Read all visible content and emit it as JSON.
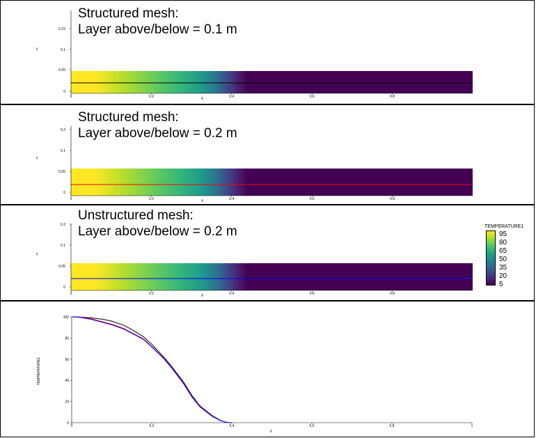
{
  "panels": [
    {
      "title_line1": "Structured mesh:",
      "title_line2": "Layer above/below = 0.1 m",
      "line_color": "#000000"
    },
    {
      "title_line1": "Structured mesh:",
      "title_line2": "Layer above/below = 0.2 m",
      "line_color": "#ff0000"
    },
    {
      "title_line1": "Unstructured mesh:",
      "title_line2": "Layer above/below = 0.2 m",
      "line_color": "#0000ff"
    }
  ],
  "legend": {
    "title": "TEMPERATURE1",
    "labels": [
      "95",
      "80",
      "65",
      "50",
      "35",
      "20",
      "5"
    ],
    "colors": [
      "#fde725",
      "#b5de2b",
      "#6ece58",
      "#35b779",
      "#1f9e89",
      "#26828e",
      "#31688e",
      "#3e4989",
      "#482878",
      "#440154"
    ]
  },
  "chart_data": [
    {
      "type": "heatmap",
      "title": "Structured mesh: Layer above/below = 0.1 m",
      "xlabel": "X",
      "ylabel": "Y",
      "x_ticks": [
        "0",
        "0.2",
        "0.4",
        "0.6",
        "0.8"
      ],
      "y_ticks": [
        "0",
        "0.05",
        "0.1",
        "0.15"
      ],
      "xlim": [
        0,
        1
      ],
      "ylim": [
        0,
        0.2
      ]
    },
    {
      "type": "heatmap",
      "title": "Structured mesh: Layer above/below = 0.2 m",
      "xlabel": "X",
      "ylabel": "Y",
      "x_ticks": [
        "0",
        "0.2",
        "0.4",
        "0.6",
        "0.8"
      ],
      "y_ticks": [
        "0",
        "0.05",
        "0.1",
        "0.2"
      ],
      "xlim": [
        0,
        1
      ],
      "ylim": [
        0,
        0.2
      ]
    },
    {
      "type": "heatmap",
      "title": "Unstructured mesh: Layer above/below = 0.2 m",
      "xlabel": "X",
      "ylabel": "Y",
      "x_ticks": [
        "0",
        "0.2",
        "0.4",
        "0.6",
        "0.8"
      ],
      "y_ticks": [
        "0",
        "0.05",
        "0.1",
        "0.2"
      ],
      "xlim": [
        0,
        1
      ],
      "ylim": [
        0,
        0.2
      ]
    },
    {
      "type": "line",
      "xlabel": "X",
      "ylabel": "TEMPERATURE1",
      "xlim": [
        0,
        1
      ],
      "ylim": [
        0,
        100
      ],
      "x_ticks": [
        "0",
        "0.2",
        "0.4",
        "0.6",
        "0.8",
        "1"
      ],
      "y_ticks": [
        "0",
        "20",
        "40",
        "60",
        "80",
        "100"
      ],
      "series": [
        {
          "color": "#000000",
          "x": [
            0,
            0.02,
            0.05,
            0.08,
            0.1,
            0.13,
            0.15,
            0.18,
            0.2,
            0.23,
            0.25,
            0.28,
            0.3,
            0.32,
            0.35,
            0.37,
            0.38,
            0.39,
            0.4
          ],
          "y": [
            100,
            99.8,
            99,
            97.5,
            96,
            92,
            88,
            81,
            74,
            62,
            53,
            38,
            26,
            16,
            7,
            2.5,
            1,
            0.2,
            0
          ]
        },
        {
          "color": "#ff0000",
          "x": [
            0,
            0.02,
            0.05,
            0.08,
            0.1,
            0.13,
            0.15,
            0.18,
            0.2,
            0.23,
            0.25,
            0.28,
            0.3,
            0.32,
            0.35,
            0.37,
            0.38,
            0.39,
            0.4
          ],
          "y": [
            100,
            99.8,
            98,
            95,
            93,
            89,
            85,
            79,
            72,
            61,
            52,
            37,
            25,
            15.5,
            6.5,
            2.3,
            1,
            0.2,
            0
          ]
        },
        {
          "color": "#0000ff",
          "x": [
            0,
            0.02,
            0.05,
            0.08,
            0.1,
            0.13,
            0.15,
            0.18,
            0.2,
            0.23,
            0.25,
            0.28,
            0.3,
            0.32,
            0.35,
            0.37,
            0.38,
            0.39,
            0.4
          ],
          "y": [
            100,
            99.6,
            97.5,
            94.5,
            92.5,
            88.5,
            84.5,
            78.5,
            71.5,
            60.5,
            51.5,
            36.5,
            24.5,
            15,
            6.2,
            2.2,
            0.9,
            0.2,
            0
          ]
        }
      ]
    }
  ]
}
